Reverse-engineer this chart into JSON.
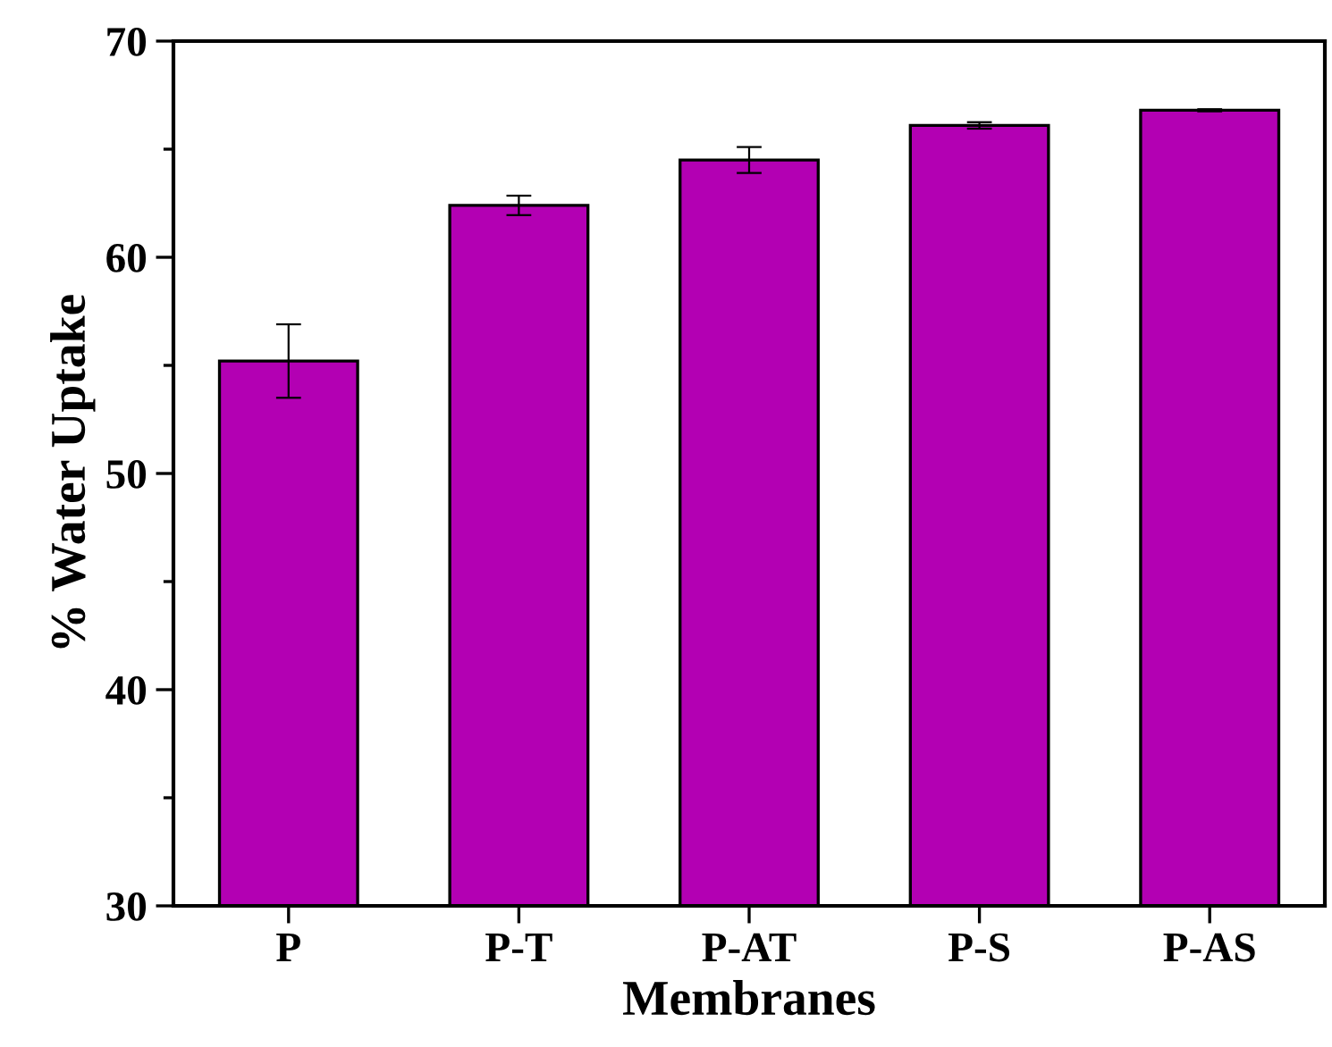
{
  "chart_data": {
    "type": "bar",
    "xlabel": "Membranes",
    "ylabel": "% Water Uptake",
    "categories": [
      "P",
      "P-T",
      "P-AT",
      "P-S",
      "P-AS"
    ],
    "values": [
      55.2,
      62.4,
      64.5,
      66.1,
      66.8
    ],
    "errors": [
      1.7,
      0.45,
      0.6,
      0.15,
      0.05
    ],
    "color": "#b300b3",
    "ylim": [
      30,
      70
    ],
    "yticks": [
      30,
      {
        "value": 35,
        "label": null
      },
      40,
      {
        "value": 45,
        "label": null
      },
      50,
      {
        "value": 55,
        "label": null
      },
      60,
      {
        "value": 65,
        "label": null
      },
      70
    ],
    "grid": false,
    "legend": false
  }
}
